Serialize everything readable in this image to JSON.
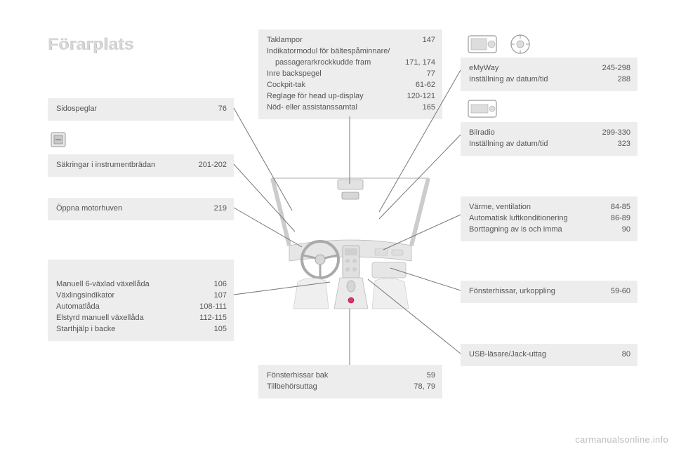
{
  "title": "Förarplats",
  "watermark": "carmanualsonline.info",
  "boxes": {
    "mirrors": {
      "rows": [
        {
          "label": "Sidospeglar",
          "page": "76"
        }
      ]
    },
    "fuses": {
      "rows": [
        {
          "label": "Säkringar i instrumentbrädan",
          "page": "201-202"
        }
      ]
    },
    "bonnet": {
      "rows": [
        {
          "label": "Öppna motorhuven",
          "page": "219"
        }
      ]
    },
    "gearbox": {
      "rows": [
        {
          "label": "Manuell 6-växlad växellåda",
          "page": "106"
        },
        {
          "label": "Växlingsindikator",
          "page": "107"
        },
        {
          "label": "Automatlåda",
          "page": "108-111"
        },
        {
          "label": "Elstyrd manuell växellåda",
          "page": "112-115"
        },
        {
          "label": "Starthjälp i backe",
          "page": "105"
        }
      ]
    },
    "ceiling": {
      "rows": [
        {
          "label": "Taklampor",
          "page": "147"
        },
        {
          "label": "Indikatormodul för bältespåminnare/",
          "page": ""
        },
        {
          "label": "passagerarkrockkudde fram",
          "page": "171, 174",
          "sub": true
        },
        {
          "label": "Inre backspegel",
          "page": "77"
        },
        {
          "label": "Cockpit-tak",
          "page": "61-62"
        },
        {
          "label": "Reglage för head up-display",
          "page": "120-121"
        },
        {
          "label": "Nöd- eller assistanssamtal",
          "page": "165"
        }
      ]
    },
    "emyway": {
      "rows": [
        {
          "label": "eMyWay",
          "page": "245-298"
        },
        {
          "label": "Inställning av datum/tid",
          "page": "288"
        }
      ]
    },
    "radio": {
      "rows": [
        {
          "label": "Bilradio",
          "page": "299-330"
        },
        {
          "label": "Inställning av datum/tid",
          "page": "323"
        }
      ]
    },
    "climate": {
      "rows": [
        {
          "label": "Värme, ventilation",
          "page": "84-85"
        },
        {
          "label": "Automatisk luftkonditionering",
          "page": "86-89"
        },
        {
          "label": "Borttagning av is och imma",
          "page": "90"
        }
      ]
    },
    "windows_front": {
      "rows": [
        {
          "label": "Fönsterhissar, urkoppling",
          "page": "59-60"
        }
      ]
    },
    "usb": {
      "rows": [
        {
          "label": "USB-läsare/Jack-uttag",
          "page": "80"
        }
      ]
    },
    "windows_rear": {
      "rows": [
        {
          "label": "Fönsterhissar bak",
          "page": "59"
        },
        {
          "label": "Tillbehörsuttag",
          "page": "78, 79"
        }
      ]
    }
  },
  "style": {
    "box_bg": "#ededed",
    "text_color": "#555555",
    "title_color": "#d6d6d6",
    "leader_color": "#777777"
  }
}
